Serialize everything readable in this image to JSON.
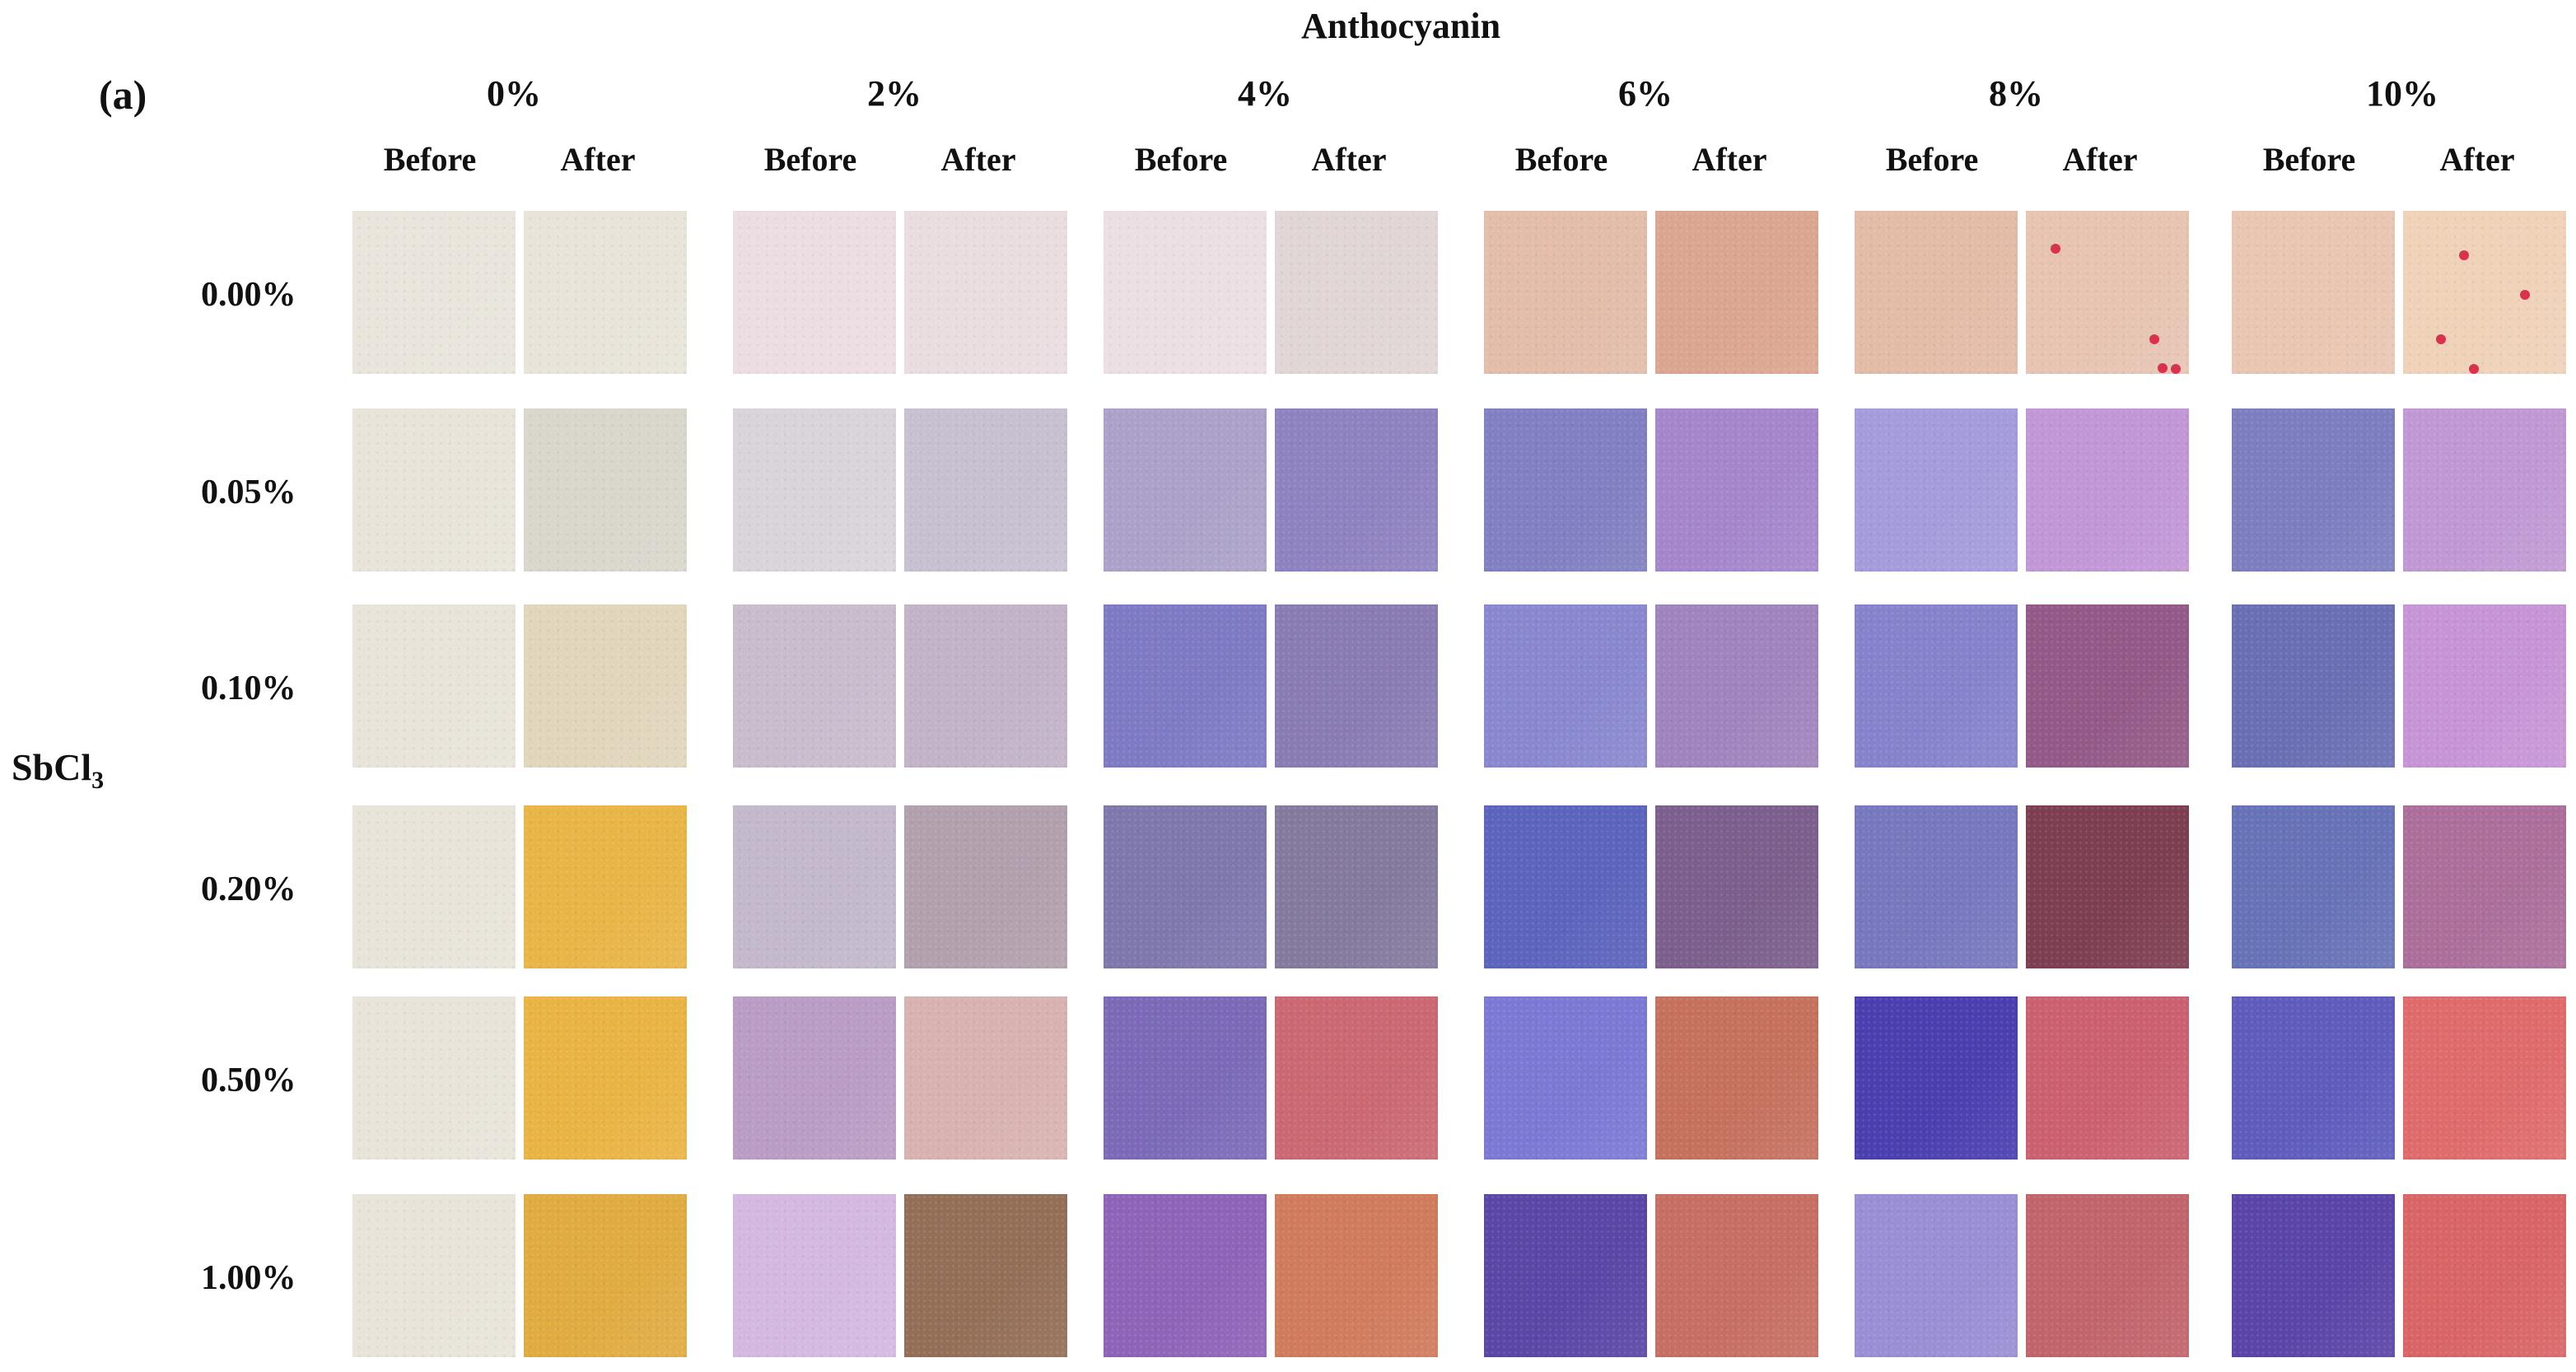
{
  "title": "Anthocyanin",
  "panel_label": "(a)",
  "row_axis": {
    "label": "SbCl",
    "subscript": "3"
  },
  "anthocyanin_levels": [
    "0%",
    "2%",
    "4%",
    "6%",
    "8%",
    "10%"
  ],
  "state_labels": [
    "Before",
    "After"
  ],
  "sbcl3_levels": [
    "0.00%",
    "0.05%",
    "0.10%",
    "0.20%",
    "0.50%",
    "1.00%"
  ],
  "swatch_colors": [
    [
      [
        "#e9e5dc",
        "#e8e4d9"
      ],
      [
        "#ecdde2",
        "#e9dde0"
      ],
      [
        "#ebdfe3",
        "#e1d6d6"
      ],
      [
        "#e3bcaa",
        "#dba690"
      ],
      [
        "#e4bba7",
        "#e7c4b2"
      ],
      [
        "#e9c6b2",
        "#efd2b8"
      ]
    ],
    [
      [
        "#e8e4da",
        "#d9d7cc"
      ],
      [
        "#d9d4da",
        "#c7c0d1"
      ],
      [
        "#aca2c9",
        "#8f82c0"
      ],
      [
        "#8080c2",
        "#a586cc"
      ],
      [
        "#a49cdc",
        "#c197d6"
      ],
      [
        "#7c7ec0",
        "#c099d4"
      ]
    ],
    [
      [
        "#e8e4da",
        "#e1d6bc"
      ],
      [
        "#c8bccd",
        "#c2b3c8"
      ],
      [
        "#7e7bc4",
        "#8a7cb3"
      ],
      [
        "#8988cf",
        "#a084bd"
      ],
      [
        "#8683cc",
        "#935a88"
      ],
      [
        "#6a6fb3",
        "#c795d6"
      ]
    ],
    [
      [
        "#e8e4da",
        "#e8b547"
      ],
      [
        "#c3b8cc",
        "#b3a0ae"
      ],
      [
        "#7e78ad",
        "#857a9e"
      ],
      [
        "#5c64bd",
        "#7c5f8c"
      ],
      [
        "#7778be",
        "#7e3e52"
      ],
      [
        "#6873b7",
        "#ac6f9c"
      ]
    ],
    [
      [
        "#e8e4da",
        "#e9b444"
      ],
      [
        "#ba9cc4",
        "#d8b2b0"
      ],
      [
        "#7c6ab8",
        "#cb6872"
      ],
      [
        "#7c79d5",
        "#c5715e"
      ],
      [
        "#4b3fb0",
        "#cb6170"
      ],
      [
        "#5f5cbe",
        "#df6b6c"
      ]
    ],
    [
      [
        "#e8e4da",
        "#e0ac42"
      ],
      [
        "#d4b8e0",
        "#946f58"
      ],
      [
        "#8e64b8",
        "#d07b5c"
      ],
      [
        "#5b47a6",
        "#c66f62"
      ],
      [
        "#9a8ed4",
        "#c1656b"
      ],
      [
        "#5b45a8",
        "#d96567"
      ]
    ]
  ]
}
